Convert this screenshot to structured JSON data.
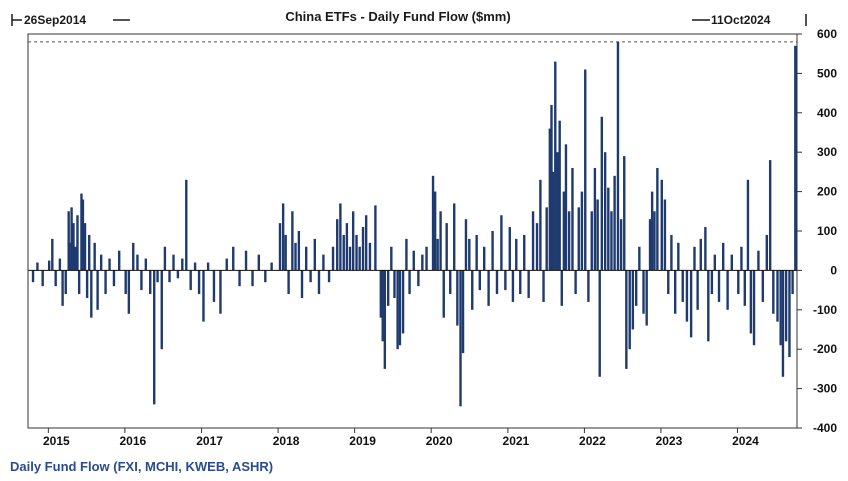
{
  "chart_data": {
    "type": "bar",
    "title": "China ETFs - Daily Fund Flow ($mm)",
    "start_date_label": "26Sep2014",
    "end_date_label": "11Oct2024",
    "series": [
      {
        "name": "Daily Fund Flow (FXI, MCHI, KWEB, ASHR)",
        "color": "#1f3a6e",
        "points": [
          {
            "date": "2014-10-20",
            "value": -30
          },
          {
            "date": "2014-11-10",
            "value": 20
          },
          {
            "date": "2014-12-05",
            "value": -40
          },
          {
            "date": "2015-01-05",
            "value": 25
          },
          {
            "date": "2015-01-20",
            "value": 80
          },
          {
            "date": "2015-02-05",
            "value": -40
          },
          {
            "date": "2015-02-25",
            "value": 30
          },
          {
            "date": "2015-03-10",
            "value": -90
          },
          {
            "date": "2015-03-25",
            "value": -60
          },
          {
            "date": "2015-04-08",
            "value": 150
          },
          {
            "date": "2015-04-15",
            "value": 70
          },
          {
            "date": "2015-04-22",
            "value": 160
          },
          {
            "date": "2015-05-01",
            "value": 120
          },
          {
            "date": "2015-05-10",
            "value": 60
          },
          {
            "date": "2015-05-20",
            "value": 140
          },
          {
            "date": "2015-05-28",
            "value": -60
          },
          {
            "date": "2015-06-08",
            "value": 195
          },
          {
            "date": "2015-06-15",
            "value": 180
          },
          {
            "date": "2015-06-25",
            "value": 120
          },
          {
            "date": "2015-07-05",
            "value": -70
          },
          {
            "date": "2015-07-15",
            "value": 90
          },
          {
            "date": "2015-07-25",
            "value": -120
          },
          {
            "date": "2015-08-10",
            "value": 70
          },
          {
            "date": "2015-08-24",
            "value": -100
          },
          {
            "date": "2015-09-10",
            "value": 40
          },
          {
            "date": "2015-10-01",
            "value": -60
          },
          {
            "date": "2015-10-20",
            "value": 30
          },
          {
            "date": "2015-11-10",
            "value": -40
          },
          {
            "date": "2015-12-05",
            "value": 50
          },
          {
            "date": "2016-01-05",
            "value": -60
          },
          {
            "date": "2016-01-20",
            "value": -110
          },
          {
            "date": "2016-02-10",
            "value": 70
          },
          {
            "date": "2016-03-01",
            "value": 40
          },
          {
            "date": "2016-03-20",
            "value": -50
          },
          {
            "date": "2016-04-10",
            "value": 30
          },
          {
            "date": "2016-05-01",
            "value": -60
          },
          {
            "date": "2016-05-20",
            "value": -340
          },
          {
            "date": "2016-06-05",
            "value": -30
          },
          {
            "date": "2016-06-25",
            "value": -200
          },
          {
            "date": "2016-07-10",
            "value": 60
          },
          {
            "date": "2016-08-01",
            "value": -30
          },
          {
            "date": "2016-08-20",
            "value": 40
          },
          {
            "date": "2016-09-10",
            "value": -20
          },
          {
            "date": "2016-10-01",
            "value": 30
          },
          {
            "date": "2016-10-20",
            "value": 230
          },
          {
            "date": "2016-11-10",
            "value": -50
          },
          {
            "date": "2016-12-01",
            "value": 20
          },
          {
            "date": "2016-12-20",
            "value": -60
          },
          {
            "date": "2017-01-10",
            "value": -130
          },
          {
            "date": "2017-02-01",
            "value": 20
          },
          {
            "date": "2017-03-01",
            "value": -80
          },
          {
            "date": "2017-04-01",
            "value": -110
          },
          {
            "date": "2017-05-01",
            "value": 30
          },
          {
            "date": "2017-06-01",
            "value": 60
          },
          {
            "date": "2017-07-01",
            "value": -40
          },
          {
            "date": "2017-08-01",
            "value": 50
          },
          {
            "date": "2017-09-01",
            "value": -40
          },
          {
            "date": "2017-10-01",
            "value": 40
          },
          {
            "date": "2017-11-01",
            "value": -30
          },
          {
            "date": "2017-12-01",
            "value": 20
          },
          {
            "date": "2018-01-10",
            "value": 120
          },
          {
            "date": "2018-01-25",
            "value": 170
          },
          {
            "date": "2018-02-06",
            "value": 90
          },
          {
            "date": "2018-02-20",
            "value": -60
          },
          {
            "date": "2018-03-10",
            "value": 150
          },
          {
            "date": "2018-03-25",
            "value": 70
          },
          {
            "date": "2018-04-10",
            "value": 100
          },
          {
            "date": "2018-04-25",
            "value": -70
          },
          {
            "date": "2018-05-15",
            "value": 60
          },
          {
            "date": "2018-06-05",
            "value": -30
          },
          {
            "date": "2018-06-25",
            "value": 80
          },
          {
            "date": "2018-07-15",
            "value": -60
          },
          {
            "date": "2018-08-05",
            "value": 40
          },
          {
            "date": "2018-09-01",
            "value": -30
          },
          {
            "date": "2018-09-20",
            "value": 60
          },
          {
            "date": "2018-10-10",
            "value": 130
          },
          {
            "date": "2018-10-25",
            "value": 170
          },
          {
            "date": "2018-11-10",
            "value": 90
          },
          {
            "date": "2018-11-25",
            "value": 120
          },
          {
            "date": "2018-12-10",
            "value": 60
          },
          {
            "date": "2018-12-25",
            "value": 150
          },
          {
            "date": "2019-01-10",
            "value": 90
          },
          {
            "date": "2019-01-25",
            "value": 60
          },
          {
            "date": "2019-02-10",
            "value": 110
          },
          {
            "date": "2019-02-25",
            "value": 140
          },
          {
            "date": "2019-03-15",
            "value": 70
          },
          {
            "date": "2019-04-10",
            "value": 165
          },
          {
            "date": "2019-05-06",
            "value": -120
          },
          {
            "date": "2019-05-15",
            "value": -180
          },
          {
            "date": "2019-05-25",
            "value": -250
          },
          {
            "date": "2019-06-10",
            "value": -90
          },
          {
            "date": "2019-06-25",
            "value": 60
          },
          {
            "date": "2019-07-10",
            "value": -70
          },
          {
            "date": "2019-07-25",
            "value": -200
          },
          {
            "date": "2019-08-05",
            "value": -190
          },
          {
            "date": "2019-08-20",
            "value": -160
          },
          {
            "date": "2019-09-05",
            "value": 80
          },
          {
            "date": "2019-09-20",
            "value": -60
          },
          {
            "date": "2019-10-10",
            "value": 50
          },
          {
            "date": "2019-11-01",
            "value": -40
          },
          {
            "date": "2019-11-20",
            "value": 40
          },
          {
            "date": "2019-12-10",
            "value": 60
          },
          {
            "date": "2020-01-10",
            "value": 240
          },
          {
            "date": "2020-01-20",
            "value": 200
          },
          {
            "date": "2020-02-01",
            "value": 80
          },
          {
            "date": "2020-02-15",
            "value": 150
          },
          {
            "date": "2020-03-01",
            "value": -120
          },
          {
            "date": "2020-03-15",
            "value": 120
          },
          {
            "date": "2020-04-01",
            "value": -60
          },
          {
            "date": "2020-04-20",
            "value": 170
          },
          {
            "date": "2020-05-05",
            "value": -140
          },
          {
            "date": "2020-05-20",
            "value": -345
          },
          {
            "date": "2020-06-01",
            "value": -210
          },
          {
            "date": "2020-06-15",
            "value": 130
          },
          {
            "date": "2020-07-01",
            "value": 80
          },
          {
            "date": "2020-07-15",
            "value": -100
          },
          {
            "date": "2020-08-05",
            "value": 90
          },
          {
            "date": "2020-08-20",
            "value": -50
          },
          {
            "date": "2020-09-10",
            "value": 60
          },
          {
            "date": "2020-10-01",
            "value": -90
          },
          {
            "date": "2020-10-20",
            "value": 100
          },
          {
            "date": "2020-11-10",
            "value": -60
          },
          {
            "date": "2020-12-01",
            "value": 140
          },
          {
            "date": "2020-12-20",
            "value": -50
          },
          {
            "date": "2021-01-10",
            "value": 110
          },
          {
            "date": "2021-01-25",
            "value": -80
          },
          {
            "date": "2021-02-10",
            "value": 80
          },
          {
            "date": "2021-03-01",
            "value": -60
          },
          {
            "date": "2021-03-20",
            "value": 90
          },
          {
            "date": "2021-04-10",
            "value": -70
          },
          {
            "date": "2021-05-01",
            "value": 150
          },
          {
            "date": "2021-05-20",
            "value": 120
          },
          {
            "date": "2021-06-05",
            "value": 230
          },
          {
            "date": "2021-06-20",
            "value": -80
          },
          {
            "date": "2021-07-05",
            "value": 160
          },
          {
            "date": "2021-07-20",
            "value": 360
          },
          {
            "date": "2021-07-28",
            "value": 420
          },
          {
            "date": "2021-08-05",
            "value": 250
          },
          {
            "date": "2021-08-15",
            "value": 530
          },
          {
            "date": "2021-08-25",
            "value": 300
          },
          {
            "date": "2021-09-05",
            "value": 380
          },
          {
            "date": "2021-09-15",
            "value": -90
          },
          {
            "date": "2021-09-25",
            "value": 200
          },
          {
            "date": "2021-10-05",
            "value": 320
          },
          {
            "date": "2021-10-20",
            "value": 150
          },
          {
            "date": "2021-11-05",
            "value": 260
          },
          {
            "date": "2021-11-20",
            "value": -60
          },
          {
            "date": "2021-12-05",
            "value": 160
          },
          {
            "date": "2021-12-20",
            "value": 200
          },
          {
            "date": "2022-01-05",
            "value": 510
          },
          {
            "date": "2022-01-20",
            "value": -80
          },
          {
            "date": "2022-02-05",
            "value": 150
          },
          {
            "date": "2022-02-20",
            "value": 260
          },
          {
            "date": "2022-03-05",
            "value": 180
          },
          {
            "date": "2022-03-15",
            "value": -270
          },
          {
            "date": "2022-03-25",
            "value": 390
          },
          {
            "date": "2022-04-10",
            "value": 300
          },
          {
            "date": "2022-04-25",
            "value": 210
          },
          {
            "date": "2022-05-10",
            "value": 150
          },
          {
            "date": "2022-05-25",
            "value": 240
          },
          {
            "date": "2022-06-10",
            "value": 580
          },
          {
            "date": "2022-06-25",
            "value": 130
          },
          {
            "date": "2022-07-10",
            "value": 290
          },
          {
            "date": "2022-07-20",
            "value": -250
          },
          {
            "date": "2022-08-05",
            "value": -200
          },
          {
            "date": "2022-08-20",
            "value": -150
          },
          {
            "date": "2022-09-05",
            "value": -90
          },
          {
            "date": "2022-09-20",
            "value": 60
          },
          {
            "date": "2022-10-10",
            "value": -110
          },
          {
            "date": "2022-10-25",
            "value": -140
          },
          {
            "date": "2022-11-10",
            "value": 130
          },
          {
            "date": "2022-11-20",
            "value": 200
          },
          {
            "date": "2022-12-01",
            "value": 150
          },
          {
            "date": "2022-12-15",
            "value": 260
          },
          {
            "date": "2023-01-05",
            "value": 230
          },
          {
            "date": "2023-01-20",
            "value": 180
          },
          {
            "date": "2023-02-05",
            "value": -60
          },
          {
            "date": "2023-02-20",
            "value": 90
          },
          {
            "date": "2023-03-10",
            "value": -110
          },
          {
            "date": "2023-03-25",
            "value": 70
          },
          {
            "date": "2023-04-15",
            "value": -80
          },
          {
            "date": "2023-05-05",
            "value": -130
          },
          {
            "date": "2023-05-25",
            "value": -170
          },
          {
            "date": "2023-06-10",
            "value": 60
          },
          {
            "date": "2023-06-25",
            "value": -100
          },
          {
            "date": "2023-07-10",
            "value": 80
          },
          {
            "date": "2023-08-01",
            "value": 110
          },
          {
            "date": "2023-08-15",
            "value": -180
          },
          {
            "date": "2023-09-01",
            "value": -60
          },
          {
            "date": "2023-09-15",
            "value": 40
          },
          {
            "date": "2023-10-05",
            "value": -80
          },
          {
            "date": "2023-10-25",
            "value": 70
          },
          {
            "date": "2023-11-15",
            "value": -100
          },
          {
            "date": "2023-12-05",
            "value": 40
          },
          {
            "date": "2024-01-05",
            "value": -60
          },
          {
            "date": "2024-01-20",
            "value": 60
          },
          {
            "date": "2024-02-05",
            "value": -90
          },
          {
            "date": "2024-02-20",
            "value": 230
          },
          {
            "date": "2024-03-05",
            "value": -160
          },
          {
            "date": "2024-03-20",
            "value": -190
          },
          {
            "date": "2024-04-10",
            "value": 50
          },
          {
            "date": "2024-05-01",
            "value": -80
          },
          {
            "date": "2024-05-20",
            "value": 90
          },
          {
            "date": "2024-06-05",
            "value": 280
          },
          {
            "date": "2024-06-20",
            "value": -110
          },
          {
            "date": "2024-07-10",
            "value": -130
          },
          {
            "date": "2024-07-25",
            "value": -190
          },
          {
            "date": "2024-08-05",
            "value": -270
          },
          {
            "date": "2024-08-20",
            "value": -180
          },
          {
            "date": "2024-09-05",
            "value": -220
          },
          {
            "date": "2024-09-20",
            "value": -60
          },
          {
            "date": "2024-10-03",
            "value": 570
          }
        ]
      }
    ],
    "xlabel": "",
    "ylabel": "",
    "ylim": [
      -400,
      600
    ],
    "xlim": [
      "2014-09-26",
      "2024-10-11"
    ],
    "y_ticks": [
      600,
      500,
      400,
      300,
      200,
      100,
      0,
      -100,
      -200,
      -300,
      -400
    ],
    "x_ticks": [
      "2015",
      "2016",
      "2017",
      "2018",
      "2019",
      "2020",
      "2021",
      "2022",
      "2023",
      "2024"
    ],
    "x_tick_dates": [
      "2015-01-01",
      "2016-01-01",
      "2017-01-01",
      "2018-01-01",
      "2019-01-01",
      "2020-01-01",
      "2021-01-01",
      "2022-01-01",
      "2023-01-01",
      "2024-01-01"
    ],
    "reference_line": {
      "value": 580,
      "style": "dashed"
    },
    "zero_line": true,
    "grid": false,
    "y_axis_side": "right",
    "legend": {
      "position": "bottom-left",
      "text": "Daily Fund Flow (FXI, MCHI, KWEB, ASHR)"
    }
  }
}
